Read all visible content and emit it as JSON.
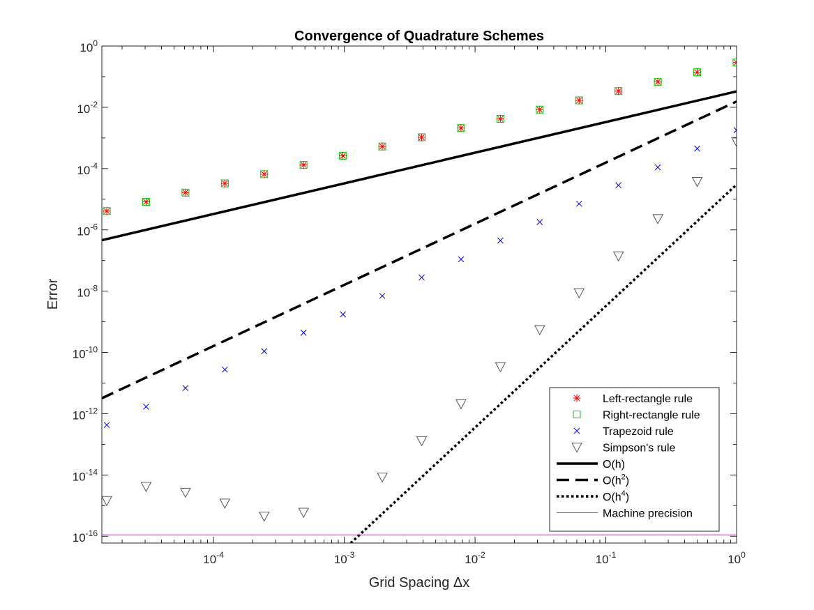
{
  "chart_data": {
    "type": "scatter",
    "title": "Convergence of Quadrature Schemes",
    "xlabel": "Grid Spacing Δx",
    "ylabel": "Error",
    "x_scale": "log",
    "y_scale": "log",
    "xlim": [
      1.4e-05,
      1
    ],
    "ylim": [
      6e-17,
      1
    ],
    "x_ticks": [
      {
        "value": 0.0001,
        "base": "10",
        "exp": "-4"
      },
      {
        "value": 0.001,
        "base": "10",
        "exp": "-3"
      },
      {
        "value": 0.01,
        "base": "10",
        "exp": "-2"
      },
      {
        "value": 0.1,
        "base": "10",
        "exp": "-1"
      },
      {
        "value": 1,
        "base": "10",
        "exp": "0"
      }
    ],
    "y_ticks": [
      {
        "value": 1e-16,
        "base": "10",
        "exp": "-16"
      },
      {
        "value": 1e-14,
        "base": "10",
        "exp": "-14"
      },
      {
        "value": 1e-12,
        "base": "10",
        "exp": "-12"
      },
      {
        "value": 1e-10,
        "base": "10",
        "exp": "-10"
      },
      {
        "value": 1e-08,
        "base": "10",
        "exp": "-8"
      },
      {
        "value": 1e-06,
        "base": "10",
        "exp": "-6"
      },
      {
        "value": 0.0001,
        "base": "10",
        "exp": "-4"
      },
      {
        "value": 0.01,
        "base": "10",
        "exp": "-2"
      },
      {
        "value": 1,
        "base": "10",
        "exp": "0"
      }
    ],
    "x": [
      1,
      0.5,
      0.25,
      0.125,
      0.0625,
      0.03125,
      0.015625,
      0.0078125,
      0.00390625,
      0.001953125,
      0.0009765625,
      0.00048828125,
      0.000244140625,
      0.0001220703125,
      6.103515625e-05,
      3.0517578125e-05,
      1.52587890625e-05
    ],
    "series": [
      {
        "name": "Left-rectangle rule",
        "marker": "asterisk",
        "color": "#ff0000",
        "values": [
          0.29,
          0.139,
          0.068,
          0.0337,
          0.0168,
          0.0084,
          0.0042,
          0.0021,
          0.00105,
          0.000525,
          0.0002625,
          0.00013125,
          6.56e-05,
          3.28e-05,
          1.64e-05,
          8.2e-06,
          4.1e-06
        ]
      },
      {
        "name": "Right-rectangle rule",
        "marker": "square",
        "color": "#00cc00",
        "values": [
          0.29,
          0.139,
          0.068,
          0.0337,
          0.0168,
          0.0084,
          0.0042,
          0.0021,
          0.00105,
          0.000525,
          0.0002625,
          0.00013125,
          6.56e-05,
          3.28e-05,
          1.64e-05,
          8.2e-06,
          4.1e-06
        ]
      },
      {
        "name": "Trapezoid rule",
        "marker": "x",
        "color": "#0000ff",
        "values": [
          0.0018,
          0.00045,
          0.00011,
          2.85e-05,
          7.1e-06,
          1.8e-06,
          4.5e-07,
          1.1e-07,
          2.8e-08,
          7e-09,
          1.75e-09,
          4.4e-10,
          1.1e-10,
          2.75e-11,
          6.9e-12,
          1.7e-12,
          4.3e-13
        ]
      },
      {
        "name": "Simpson's rule",
        "marker": "triangle-down",
        "color": "#555555",
        "values": [
          0.00075,
          3.75e-05,
          2.3e-06,
          1.4e-07,
          8.8e-09,
          5.5e-10,
          3.4e-11,
          2.1e-12,
          1.3e-13,
          8.5e-15,
          null,
          6e-16,
          4.5e-16,
          1.2e-15,
          2.7e-15,
          4.2e-15,
          1.45e-15
        ]
      }
    ],
    "reference_lines": [
      {
        "name": "O(h)",
        "label_base": "O(h",
        "label_exp": "",
        "label_end": ")",
        "style": "solid",
        "color": "#000000",
        "x": [
          1.4e-05,
          1
        ],
        "y": [
          4.6e-07,
          0.033
        ]
      },
      {
        "name": "O(h2)",
        "label_base": "O(h",
        "label_exp": "2",
        "label_end": ")",
        "style": "dashed",
        "color": "#000000",
        "x": [
          1.4e-05,
          1
        ],
        "y": [
          3.2e-12,
          0.0155
        ]
      },
      {
        "name": "O(h4)",
        "label_base": "O(h",
        "label_exp": "4",
        "label_end": ")",
        "style": "dotted",
        "color": "#000000",
        "x": [
          0.00112,
          1
        ],
        "y": [
          6e-17,
          3e-05
        ]
      },
      {
        "name": "Machine precision",
        "label_base": "Machine precision",
        "label_exp": "",
        "label_end": "",
        "style": "thin",
        "color": "#ff00ff",
        "x": [
          1.4e-05,
          1
        ],
        "y": [
          1.11e-16,
          1.11e-16
        ]
      }
    ],
    "legend_position": "bottom-right",
    "grid": false
  }
}
